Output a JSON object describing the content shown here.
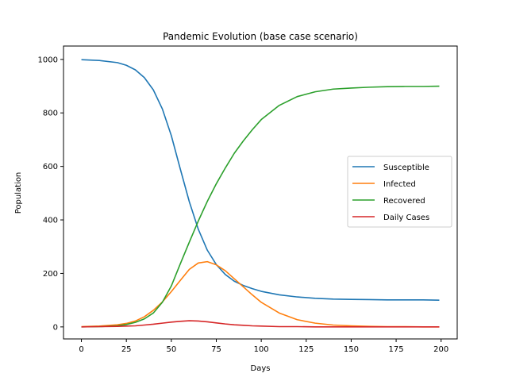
{
  "chart_data": {
    "type": "line",
    "title": "Pandemic Evolution (base case scenario)",
    "xlabel": "Days",
    "ylabel": "Population",
    "xlim": [
      -9.95,
      208.95
    ],
    "ylim": [
      -44.95,
      1049.95
    ],
    "xticks": [
      0,
      25,
      50,
      75,
      100,
      125,
      150,
      175,
      200
    ],
    "yticks": [
      0,
      200,
      400,
      600,
      800,
      1000
    ],
    "grid": false,
    "legend_position": "center-right",
    "x": [
      0,
      10,
      20,
      25,
      30,
      35,
      40,
      45,
      50,
      55,
      60,
      65,
      70,
      75,
      80,
      85,
      90,
      95,
      100,
      110,
      120,
      130,
      140,
      150,
      160,
      170,
      180,
      190,
      199
    ],
    "series": [
      {
        "name": "Susceptible",
        "color": "#1f77b4",
        "values": [
          999,
          996,
          988,
          978,
          961,
          932,
          886,
          815,
          715,
          590,
          468,
          365,
          287,
          233,
          196,
          171,
          155,
          143,
          133,
          120,
          112,
          107,
          104,
          103,
          102,
          101,
          101,
          101,
          100
        ]
      },
      {
        "name": "Infected",
        "color": "#ff7f0e",
        "values": [
          1,
          3,
          8,
          13,
          22,
          38,
          62,
          93,
          132,
          174,
          215,
          239,
          244,
          232,
          210,
          180,
          150,
          120,
          92,
          52,
          27,
          14,
          7,
          4,
          2,
          1,
          1,
          0,
          0
        ]
      },
      {
        "name": "Recovered",
        "color": "#2ca02c",
        "values": [
          0,
          1,
          4,
          9,
          17,
          30,
          52,
          92,
          153,
          236,
          317,
          396,
          469,
          535,
          594,
          649,
          695,
          737,
          775,
          828,
          861,
          879,
          889,
          893,
          896,
          898,
          899,
          899,
          900
        ]
      },
      {
        "name": "Daily Cases",
        "color": "#d62728",
        "values": [
          0,
          1,
          2,
          3,
          4,
          7,
          10,
          14,
          18,
          21,
          23,
          22,
          19,
          15,
          11,
          8,
          6,
          4,
          3,
          1,
          1,
          0,
          0,
          0,
          0,
          0,
          0,
          0,
          0
        ]
      }
    ]
  }
}
